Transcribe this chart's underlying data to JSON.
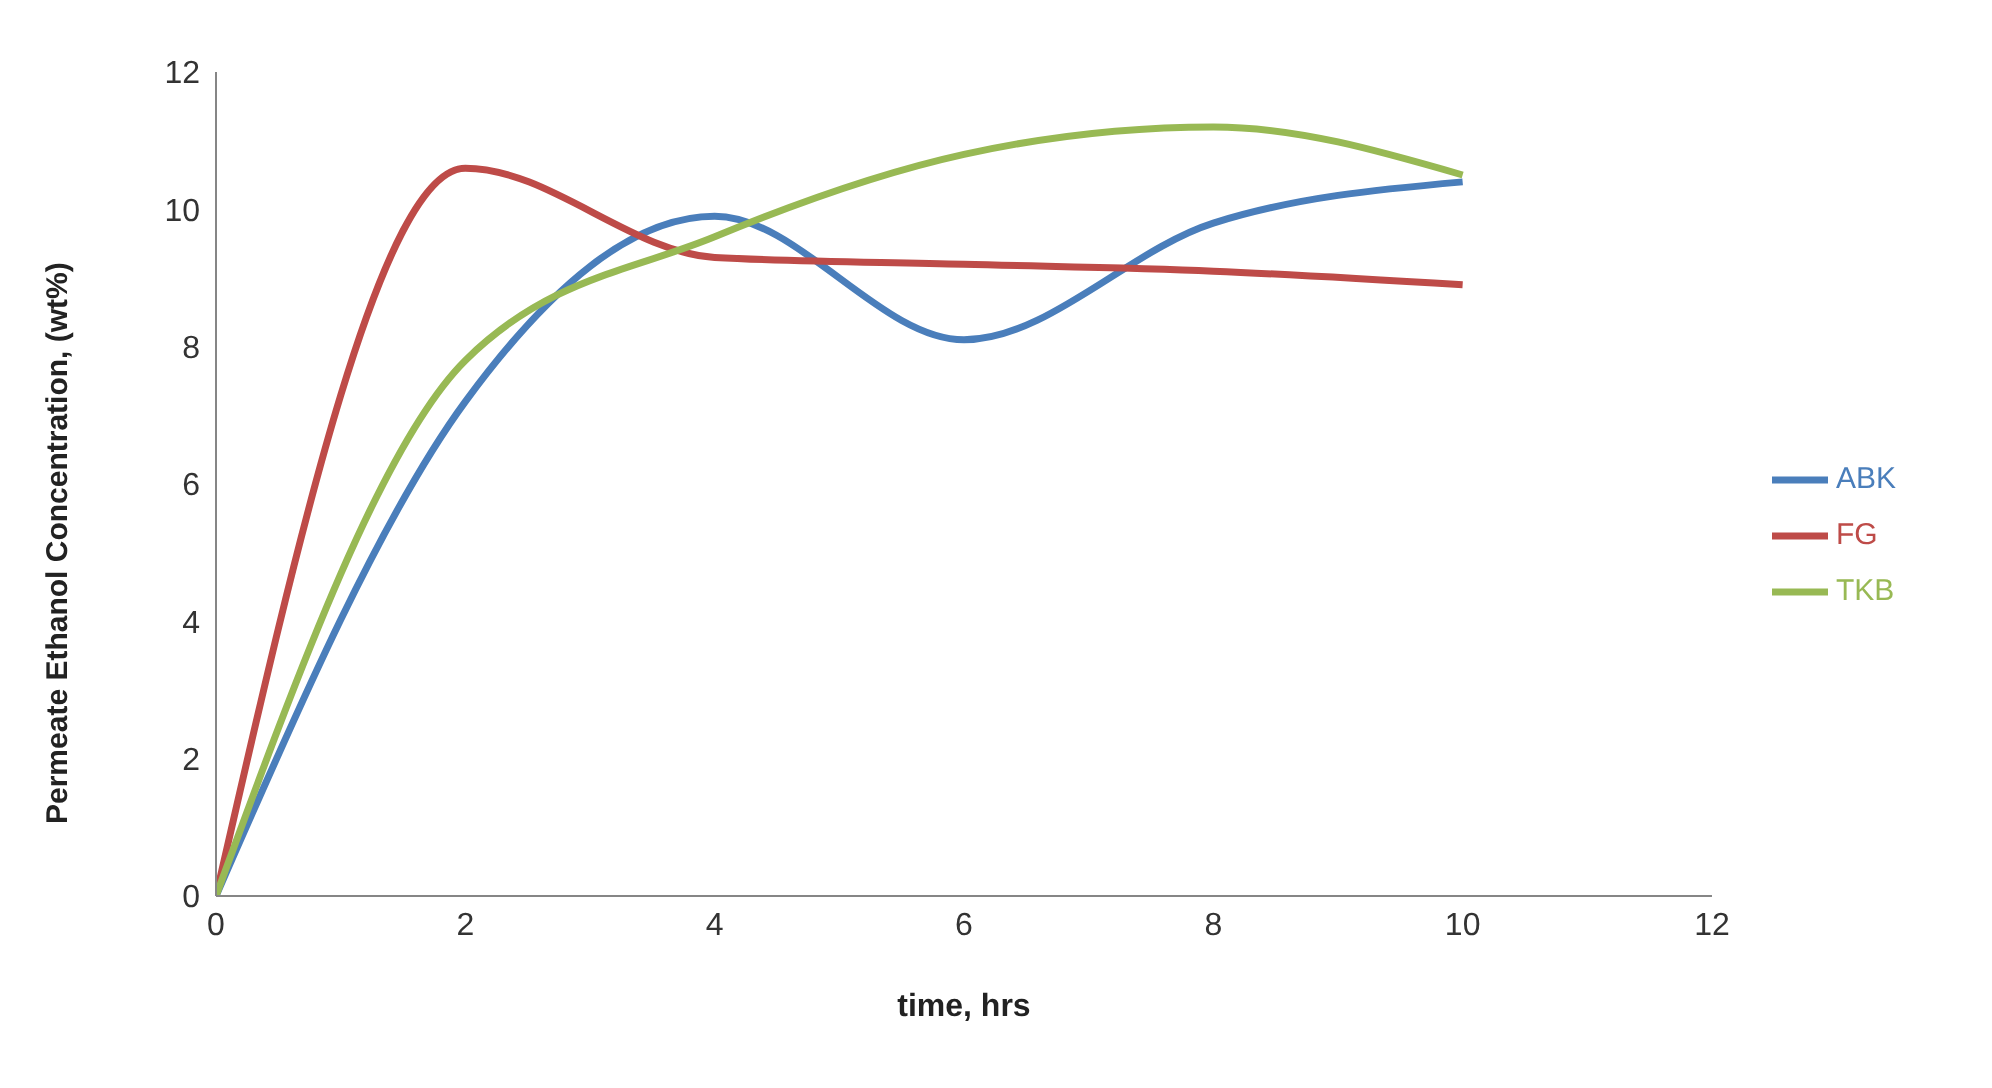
{
  "chart_data": {
    "type": "line",
    "xlabel": "time, hrs",
    "ylabel": "Permeate Ethanol Concentration,  (wt%)",
    "x": [
      0,
      2,
      4,
      6,
      8,
      10
    ],
    "series": [
      {
        "name": "ABK",
        "color": "#4a7ebb",
        "values": [
          0,
          7.2,
          9.9,
          8.1,
          9.8,
          10.4
        ]
      },
      {
        "name": "FG",
        "color": "#be4b48",
        "values": [
          0,
          10.6,
          9.3,
          9.2,
          9.1,
          8.9
        ]
      },
      {
        "name": "TKB",
        "color": "#98b954",
        "values": [
          0,
          7.8,
          9.6,
          10.8,
          11.2,
          10.5
        ]
      }
    ],
    "xlim": [
      0,
      12
    ],
    "xticks": [
      0,
      2,
      4,
      6,
      8,
      10,
      12
    ],
    "ylim": [
      0,
      12
    ],
    "yticks": [
      0,
      2,
      4,
      6,
      8,
      10,
      12
    ],
    "grid": false,
    "legend": "right",
    "marker": "none",
    "line_style": "solid"
  }
}
